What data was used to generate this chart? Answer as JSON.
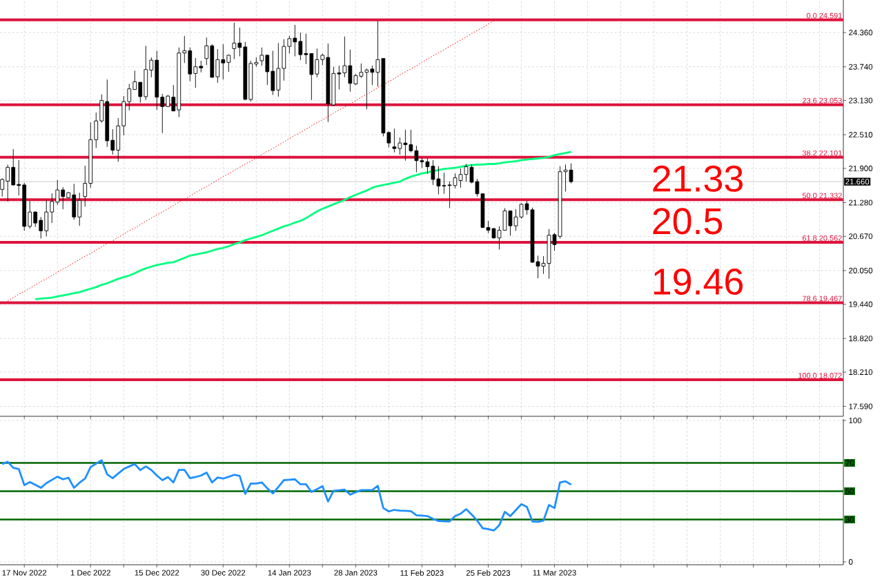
{
  "chart_data": [
    {
      "type": "candlestick",
      "categories": [
        null,
        null,
        null,
        null,
        null,
        null,
        null,
        null,
        null,
        null,
        null,
        null,
        null,
        null,
        null,
        null,
        null,
        null,
        null,
        null,
        null,
        null,
        null,
        null,
        null,
        null,
        null,
        null,
        null,
        null,
        null,
        null,
        null,
        null,
        null,
        null,
        null,
        null,
        null,
        null,
        null,
        null,
        null,
        null,
        null,
        null,
        null,
        null,
        null,
        null,
        null,
        null,
        null,
        null,
        null,
        null,
        null,
        null,
        null,
        null,
        null,
        null,
        null,
        null,
        null,
        null,
        null,
        null,
        null,
        null,
        null,
        null,
        null,
        null,
        null,
        null,
        null,
        null,
        null,
        null,
        null,
        null,
        null,
        null,
        null,
        null,
        null,
        null,
        null,
        null,
        null,
        null,
        null,
        null,
        null,
        null,
        null,
        null,
        null,
        null,
        null,
        null,
        null,
        null
      ],
      "ohlc": [
        [
          21.52,
          21.72,
          21.39,
          21.7
        ],
        [
          21.67,
          21.97,
          21.3,
          21.92
        ],
        [
          21.92,
          22.25,
          21.59,
          21.6
        ],
        [
          21.61,
          22.05,
          21.41,
          21.59
        ],
        [
          21.6,
          21.64,
          20.77,
          20.85
        ],
        [
          20.85,
          21.31,
          20.81,
          21.11
        ],
        [
          21.11,
          21.12,
          20.84,
          20.91
        ],
        [
          20.96,
          21.02,
          20.63,
          20.77
        ],
        [
          20.77,
          21.33,
          20.67,
          21.11
        ],
        [
          21.11,
          21.45,
          20.91,
          21.3
        ],
        [
          21.29,
          21.69,
          21.24,
          21.51
        ],
        [
          21.51,
          21.56,
          21.16,
          21.39
        ],
        [
          21.37,
          21.47,
          21.36,
          21.46
        ],
        [
          21.42,
          21.62,
          20.97,
          21.02
        ],
        [
          21.02,
          21.46,
          20.86,
          21.32
        ],
        [
          21.39,
          21.95,
          21.21,
          21.63
        ],
        [
          21.63,
          22.73,
          21.55,
          22.42
        ],
        [
          22.42,
          22.91,
          22.27,
          22.76
        ],
        [
          22.76,
          23.24,
          22.73,
          23.13
        ],
        [
          23.11,
          23.51,
          22.29,
          22.4
        ],
        [
          22.41,
          22.61,
          22.15,
          22.23
        ],
        [
          22.23,
          22.81,
          22.02,
          22.67
        ],
        [
          22.67,
          23.21,
          22.5,
          23.11
        ],
        [
          23.11,
          23.43,
          22.95,
          23.34
        ],
        [
          23.33,
          23.67,
          23.33,
          23.47
        ],
        [
          23.46,
          23.46,
          23.09,
          23.2
        ],
        [
          23.2,
          24.12,
          23.14,
          23.69
        ],
        [
          23.68,
          23.91,
          23.55,
          23.86
        ],
        [
          23.86,
          24.03,
          22.96,
          23.19
        ],
        [
          23.19,
          23.25,
          22.54,
          23.02
        ],
        [
          23.02,
          23.23,
          23.01,
          23.21
        ],
        [
          23.19,
          23.41,
          22.94,
          22.94
        ],
        [
          22.96,
          24.09,
          22.83,
          23.99
        ],
        [
          23.99,
          24.3,
          23.81,
          24.03
        ],
        [
          24.03,
          24.09,
          23.48,
          23.61
        ],
        [
          23.62,
          23.9,
          23.36,
          23.74
        ],
        [
          23.75,
          23.85,
          23.64,
          23.72
        ],
        [
          23.89,
          24.27,
          23.77,
          24.12
        ],
        [
          24.12,
          24.15,
          23.54,
          23.55
        ],
        [
          23.56,
          24.06,
          23.45,
          23.87
        ],
        [
          23.87,
          24.15,
          23.51,
          23.81
        ],
        [
          23.82,
          23.96,
          23.65,
          23.95
        ],
        [
          24.07,
          24.54,
          23.88,
          24.17
        ],
        [
          24.17,
          24.45,
          23.93,
          24.09
        ],
        [
          24.1,
          24.19,
          23.14,
          23.15
        ],
        [
          23.15,
          23.85,
          23.11,
          23.8
        ],
        [
          23.79,
          23.91,
          23.74,
          23.82
        ],
        [
          23.85,
          24.09,
          23.76,
          23.95
        ],
        [
          23.95,
          23.96,
          23.41,
          23.65
        ],
        [
          23.66,
          24.03,
          23.23,
          23.31
        ],
        [
          23.32,
          24.17,
          23.2,
          23.71
        ],
        [
          23.71,
          24.24,
          23.49,
          24.11
        ],
        [
          24.11,
          24.3,
          23.98,
          24.25
        ],
        [
          24.26,
          24.5,
          23.93,
          24.19
        ],
        [
          24.2,
          24.36,
          23.86,
          23.96
        ],
        [
          23.98,
          24.34,
          23.79,
          23.96
        ],
        [
          23.98,
          23.98,
          23.14,
          23.6
        ],
        [
          23.61,
          24.07,
          23.55,
          23.87
        ],
        [
          23.87,
          23.98,
          23.77,
          23.95
        ],
        [
          23.91,
          24.16,
          22.74,
          23.07
        ],
        [
          23.05,
          23.74,
          23.03,
          23.62
        ],
        [
          23.63,
          23.76,
          23.33,
          23.61
        ],
        [
          23.63,
          24.29,
          23.55,
          23.76
        ],
        [
          23.76,
          24.05,
          23.29,
          23.44
        ],
        [
          23.43,
          23.61,
          23.41,
          23.58
        ],
        [
          23.57,
          23.8,
          23.54,
          23.64
        ],
        [
          23.64,
          23.71,
          22.97,
          23.68
        ],
        [
          23.7,
          23.76,
          23.41,
          23.64
        ],
        [
          23.64,
          24.57,
          23.38,
          23.87
        ],
        [
          23.89,
          23.89,
          22.48,
          22.54
        ],
        [
          22.55,
          22.57,
          22.28,
          22.36
        ],
        [
          22.29,
          22.62,
          22.19,
          22.26
        ],
        [
          22.26,
          22.46,
          22.15,
          22.36
        ],
        [
          22.36,
          22.6,
          22.04,
          22.33
        ],
        [
          22.33,
          22.6,
          22.19,
          22.22
        ],
        [
          22.22,
          22.31,
          21.83,
          22.04
        ],
        [
          22.04,
          22.09,
          21.91,
          22.02
        ],
        [
          22.02,
          22.08,
          21.8,
          21.93
        ],
        [
          21.94,
          22.05,
          21.6,
          21.7
        ],
        [
          21.71,
          21.94,
          21.43,
          21.58
        ],
        [
          21.59,
          21.82,
          21.44,
          21.58
        ],
        [
          21.6,
          21.66,
          21.18,
          21.59
        ],
        [
          21.59,
          21.81,
          21.54,
          21.73
        ],
        [
          21.68,
          21.9,
          21.55,
          21.79
        ],
        [
          21.79,
          21.98,
          21.66,
          21.93
        ],
        [
          21.92,
          21.97,
          21.63,
          21.65
        ],
        [
          21.66,
          21.71,
          21.39,
          21.44
        ],
        [
          21.44,
          21.45,
          20.82,
          20.83
        ],
        [
          20.83,
          20.95,
          20.73,
          20.78
        ],
        [
          20.81,
          20.82,
          20.63,
          20.64
        ],
        [
          20.64,
          20.85,
          20.43,
          20.78
        ],
        [
          20.78,
          21.18,
          20.77,
          21.13
        ],
        [
          21.13,
          21.14,
          20.68,
          20.86
        ],
        [
          20.86,
          21.16,
          20.77,
          21.02
        ],
        [
          21.02,
          21.27,
          20.99,
          21.25
        ],
        [
          21.26,
          21.31,
          21.06,
          21.15
        ],
        [
          21.15,
          21.19,
          20.19,
          20.2
        ],
        [
          20.21,
          20.32,
          19.91,
          20.13
        ],
        [
          20.13,
          20.31,
          19.99,
          20.18
        ],
        [
          20.18,
          20.8,
          19.9,
          20.69
        ],
        [
          20.7,
          20.73,
          20.41,
          20.52
        ],
        [
          20.67,
          21.94,
          20.63,
          21.84
        ],
        [
          21.84,
          21.97,
          21.48,
          21.87
        ],
        [
          21.87,
          21.99,
          21.63,
          21.66
        ]
      ],
      "series": [
        {
          "type": "line",
          "color": "#00ff7f",
          "values": [
            null,
            null,
            null,
            null,
            null,
            null,
            19.53,
            19.54,
            19.55,
            19.56,
            19.58,
            19.6,
            19.62,
            19.64,
            19.66,
            19.69,
            19.72,
            19.75,
            19.79,
            19.82,
            19.86,
            19.9,
            19.93,
            19.96,
            20.0,
            20.05,
            20.09,
            20.12,
            20.15,
            20.17,
            20.19,
            20.2,
            20.24,
            20.28,
            20.32,
            20.34,
            20.36,
            20.38,
            20.41,
            20.44,
            20.46,
            20.49,
            20.53,
            20.56,
            20.6,
            20.63,
            20.66,
            20.69,
            20.73,
            20.77,
            20.81,
            20.85,
            20.88,
            20.92,
            20.95,
            21.0,
            21.06,
            21.12,
            21.17,
            21.21,
            21.25,
            21.29,
            21.33,
            21.38,
            21.42,
            21.46,
            21.5,
            21.55,
            21.58,
            21.6,
            21.62,
            21.64,
            21.66,
            21.71,
            21.75,
            21.78,
            21.81,
            21.83,
            21.85,
            21.87,
            21.89,
            21.9,
            21.91,
            21.93,
            21.95,
            21.96,
            21.97,
            21.97,
            21.98,
            21.98,
            21.99,
            22.01,
            22.02,
            22.03,
            22.05,
            22.06,
            22.07,
            22.08,
            22.09,
            22.11,
            22.14,
            22.16,
            22.18,
            22.2
          ]
        },
        {
          "type": "line",
          "color": "#ff0000",
          "line_style": "dotted",
          "values": [
            null,
            19.5,
            19.56,
            19.62,
            19.67,
            19.73,
            19.79,
            19.85,
            19.9,
            19.96,
            20.02,
            20.08,
            20.13,
            20.19,
            20.25,
            20.31,
            20.36,
            20.42,
            20.48,
            20.54,
            20.59,
            20.65,
            20.71,
            20.77,
            20.82,
            20.88,
            20.94,
            21.0,
            21.06,
            21.11,
            21.17,
            21.23,
            21.29,
            21.34,
            21.4,
            21.46,
            21.52,
            21.57,
            21.63,
            21.69,
            21.75,
            21.8,
            21.86,
            21.92,
            21.98,
            22.03,
            22.09,
            22.15,
            22.21,
            22.26,
            22.32,
            22.38,
            22.44,
            22.5,
            22.55,
            22.61,
            22.67,
            22.73,
            22.78,
            22.84,
            22.9,
            22.96,
            23.01,
            23.07,
            23.13,
            23.19,
            23.24,
            23.3,
            23.36,
            23.42,
            23.47,
            23.53,
            23.59,
            23.65,
            23.7,
            23.76,
            23.82,
            23.88,
            23.94,
            23.99,
            24.05,
            24.11,
            24.17,
            24.22,
            24.28,
            24.34,
            24.4,
            24.45,
            24.51,
            24.57,
            null,
            null,
            null,
            null,
            null,
            null,
            null,
            null,
            null,
            null,
            null,
            null,
            null,
            null
          ]
        }
      ],
      "ylim": [
        17.41,
        24.95
      ],
      "yticks": [
        {
          "value": 17.59,
          "label": "17.590"
        },
        {
          "value": 18.21,
          "label": "18.210"
        },
        {
          "value": 18.82,
          "label": "18.820"
        },
        {
          "value": 19.44,
          "label": "19.440"
        },
        {
          "value": 20.05,
          "label": "20.050"
        },
        {
          "value": 20.67,
          "label": "20.670"
        },
        {
          "value": 21.28,
          "label": "21.280"
        },
        {
          "value": 21.9,
          "label": "21.900"
        },
        {
          "value": 22.51,
          "label": "22.510"
        },
        {
          "value": 23.13,
          "label": "23.130"
        },
        {
          "value": 23.74,
          "label": "23.740"
        },
        {
          "value": 24.36,
          "label": "24.360"
        }
      ],
      "ref_lines": [
        {
          "axis": "y",
          "value": 24.591,
          "label": "0.0 24.591",
          "color": "#dc143c"
        },
        {
          "axis": "y",
          "value": 23.053,
          "label": "23.6 23.053",
          "color": "#dc143c"
        },
        {
          "axis": "y",
          "value": 22.101,
          "label": "38.2 22.101",
          "color": "#dc143c"
        },
        {
          "axis": "y",
          "value": 21.332,
          "label": "50.0 21.332",
          "color": "#dc143c"
        },
        {
          "axis": "y",
          "value": 20.562,
          "label": "61.8 20.562",
          "color": "#dc143c"
        },
        {
          "axis": "y",
          "value": 19.467,
          "label": "78.6 19.467",
          "color": "#dc143c"
        },
        {
          "axis": "y",
          "value": 18.072,
          "label": "100.0 18.072",
          "color": "#dc143c"
        },
        {
          "axis": "y",
          "value": 21.66,
          "label": "21.660",
          "color": "#c0c0c0"
        }
      ],
      "annotations": [
        {
          "text": "21.33",
          "y": 21.332
        },
        {
          "text": "20.5",
          "y": 20.562
        },
        {
          "text": "19.46",
          "y": 19.467
        }
      ],
      "grid": true,
      "tick_labels": "y"
    },
    {
      "type": "line",
      "color": "#1e90ff",
      "categories": [
        null,
        null,
        null,
        null,
        "17 Nov 2022",
        null,
        null,
        null,
        null,
        null,
        null,
        null,
        null,
        null,
        null,
        null,
        "1 Dec 2022",
        null,
        null,
        null,
        null,
        null,
        null,
        null,
        null,
        null,
        null,
        null,
        "15 Dec 2022",
        null,
        null,
        null,
        null,
        null,
        null,
        null,
        null,
        null,
        null,
        null,
        "30 Dec 2022",
        null,
        null,
        null,
        null,
        null,
        null,
        null,
        null,
        null,
        null,
        null,
        "14 Jan 2023",
        null,
        null,
        null,
        null,
        null,
        null,
        null,
        null,
        null,
        null,
        null,
        "28 Jan 2023",
        null,
        null,
        null,
        null,
        null,
        null,
        null,
        null,
        null,
        null,
        null,
        "11 Feb 2023",
        null,
        null,
        null,
        null,
        null,
        null,
        null,
        null,
        null,
        null,
        null,
        "25 Feb 2023",
        null,
        null,
        null,
        null,
        null,
        null,
        null,
        null,
        null,
        null,
        null,
        "11 Mar 2023",
        null,
        null,
        null
      ],
      "values": [
        69.2,
        70.8,
        66.5,
        65.7,
        54.3,
        56.5,
        54.5,
        52.4,
        55.7,
        58.0,
        60.3,
        58.4,
        59.5,
        52.4,
        56.0,
        58.9,
        67.0,
        69.5,
        71.9,
        61.9,
        59.2,
        62.5,
        65.7,
        67.5,
        69.2,
        64.9,
        67.5,
        65.0,
        61.1,
        57.8,
        60.0,
        56.2,
        65.1,
        65.1,
        59.2,
        60.0,
        61.1,
        63.2,
        56.2,
        59.7,
        58.9,
        60.2,
        61.6,
        60.8,
        48.1,
        55.4,
        55.4,
        56.2,
        52.0,
        48.4,
        53.0,
        57.8,
        58.1,
        58.4,
        54.9,
        54.9,
        49.5,
        51.5,
        53.5,
        42.7,
        50.3,
        50.7,
        51.1,
        47.6,
        49.3,
        50.8,
        50.8,
        50.8,
        53.8,
        38.1,
        35.7,
        36.8,
        36.3,
        36.1,
        35.9,
        33.0,
        32.7,
        32.4,
        30.5,
        28.9,
        28.7,
        28.6,
        32.4,
        34.1,
        37.3,
        33.5,
        29.2,
        23.8,
        23.2,
        22.2,
        25.9,
        35.4,
        32.4,
        36.6,
        40.8,
        38.9,
        28.6,
        28.3,
        29.2,
        40.3,
        38.1,
        56.2,
        57.0,
        54.6
      ],
      "ylim": [
        -2,
        101
      ],
      "yticks": [
        0,
        100
      ],
      "ref_lines": [
        {
          "axis": "y",
          "value": 70,
          "label": "70",
          "color": "#006400"
        },
        {
          "axis": "y",
          "value": 50,
          "label": "50",
          "color": "#006400"
        },
        {
          "axis": "y",
          "value": 30,
          "label": "30",
          "color": "#006400"
        }
      ],
      "grid": true
    }
  ]
}
